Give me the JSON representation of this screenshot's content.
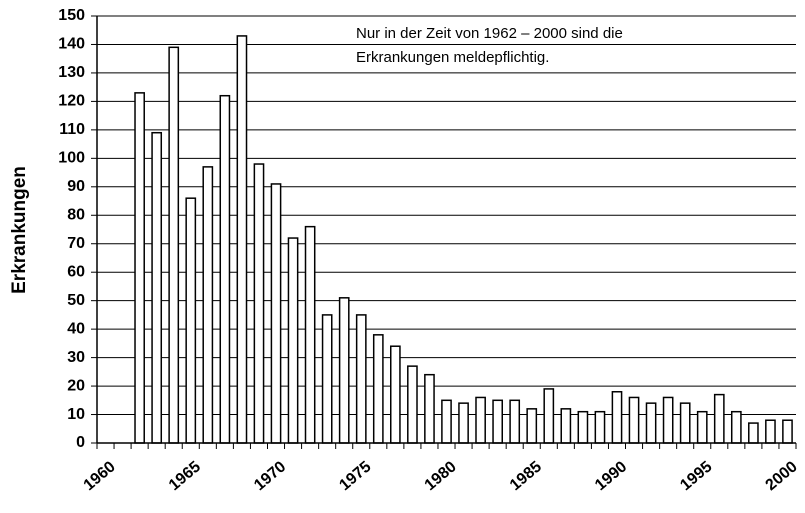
{
  "chart_data": {
    "type": "bar",
    "ylabel": "Erkrankungen",
    "annotation": [
      "Nur in der Zeit von 1962 – 2000 sind die",
      "Erkrankungen meldepflichtig."
    ],
    "x": [
      1962,
      1963,
      1964,
      1965,
      1966,
      1967,
      1968,
      1969,
      1970,
      1971,
      1972,
      1973,
      1974,
      1975,
      1976,
      1977,
      1978,
      1979,
      1980,
      1981,
      1982,
      1983,
      1984,
      1985,
      1986,
      1987,
      1988,
      1989,
      1990,
      1991,
      1992,
      1993,
      1994,
      1995,
      1996,
      1997,
      1998,
      1999,
      2000
    ],
    "values": [
      123,
      109,
      139,
      86,
      97,
      122,
      143,
      98,
      91,
      72,
      76,
      45,
      51,
      45,
      38,
      34,
      27,
      24,
      15,
      14,
      16,
      15,
      15,
      12,
      19,
      12,
      11,
      11,
      18,
      16,
      14,
      16,
      14,
      11,
      17,
      11,
      7,
      8,
      8
    ],
    "color": "#ffffff",
    "xlim": [
      1959.5,
      2000.5
    ],
    "xticks": [
      1960,
      1965,
      1970,
      1975,
      1980,
      1985,
      1990,
      1995,
      2000
    ],
    "ylim": [
      0,
      150
    ],
    "yticks": [
      0,
      10,
      20,
      30,
      40,
      50,
      60,
      70,
      80,
      90,
      100,
      110,
      120,
      130,
      140,
      150
    ],
    "grid": true
  }
}
